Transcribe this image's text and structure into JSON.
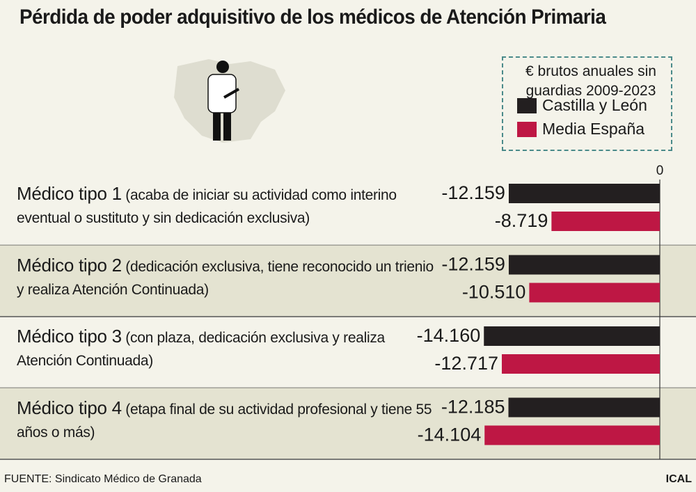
{
  "chart_data": {
    "type": "bar",
    "orientation": "horizontal",
    "title": "Pérdida de poder adquisitivo de los médicos de Atención Primaria",
    "legend_title": "€ brutos anuales sin guardias 2009-2023",
    "categories": [
      "Médico tipo 1",
      "Médico tipo 2",
      "Médico tipo 3",
      "Médico tipo 4"
    ],
    "descriptions": [
      "(acaba de iniciar su actividad como interino eventual o sustituto y sin dedicación exclusiva)",
      "(dedicación exclusiva, tiene reconocido un trienio y realiza Atención Continuada)",
      "(con plaza, dedicación exclusiva y realiza Atención Continuada)",
      "(etapa final de su actividad profesional y tiene 55 años o más)"
    ],
    "series": [
      {
        "name": "Castilla y León",
        "color": "#231f20",
        "values": [
          -12159,
          -12159,
          -14160,
          -12185
        ],
        "value_labels": [
          "-12.159",
          "-12.159",
          "-14.160",
          "-12.185"
        ]
      },
      {
        "name": "Media España",
        "color": "#be1744",
        "values": [
          -8719,
          -10510,
          -12717,
          -14104
        ],
        "value_labels": [
          "-8.719",
          "-10.510",
          "-12.717",
          "-14.104"
        ]
      }
    ],
    "xlim": [
      -20000,
      0
    ],
    "xticks": [
      0
    ],
    "source": "FUENTE: Sindicato Médico de Granada",
    "credit": "ICAL"
  }
}
